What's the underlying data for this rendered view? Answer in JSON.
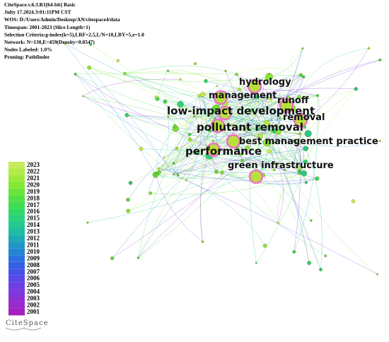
{
  "header": {
    "lines": [
      "CiteSpace.v.6.3.R1[64-bit] Basic",
      "Julty 17.2024.3:01:11PM CST",
      "WOS: D:/Users/Admin/Desktop/AN/citespace4/data",
      "Timespan: 2001-2023 (Slice Length=1)",
      "Selection Criteria:g-index(k=5),LRF=2.5,L/N=10,LBY=5,e=1.0",
      "Network: N=130,E=459(Density=0.0547)",
      "Nodes Labeled: 1.0%",
      "Pruning: Pathfinder"
    ]
  },
  "keywords": [
    "hydrology",
    "management",
    "runoff",
    "low-impact development",
    "removal",
    "pollutant removal",
    "best management practice",
    "performance",
    "green infrastructure"
  ],
  "legend": {
    "years": [
      "2023",
      "2022",
      "2021",
      "2020",
      "2019",
      "2018",
      "2017",
      "2016",
      "2015",
      "2014",
      "2013",
      "2012",
      "2011",
      "2010",
      "2009",
      "2008",
      "2007",
      "2006",
      "2005",
      "2004",
      "2003",
      "2002",
      "2001"
    ],
    "colors": [
      "#c6ec5a",
      "#b2ec48",
      "#9bea3c",
      "#83e838",
      "#6ae43a",
      "#52e042",
      "#3fdc52",
      "#32d866",
      "#2ad27c",
      "#24c890",
      "#20bca2",
      "#1eaab4",
      "#2096c4",
      "#2484d4",
      "#2a72de",
      "#3460e4",
      "#4452e8",
      "#5848e8",
      "#6c40e4",
      "#7e38de",
      "#8e30d6",
      "#9a28cc",
      "#a420c0"
    ]
  },
  "logo": "CiteSpace"
}
